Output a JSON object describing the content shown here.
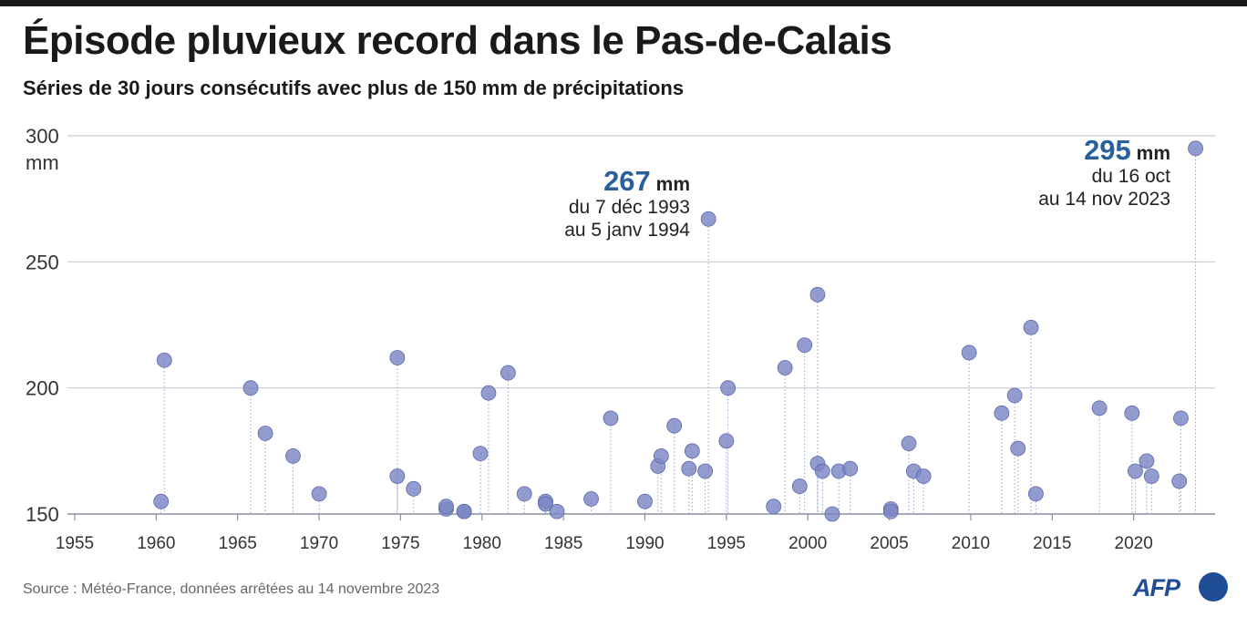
{
  "title": "Épisode pluvieux record dans le Pas-de-Calais",
  "subtitle": "Séries de 30 jours consécutifs avec plus de 150 mm de précipitations",
  "source": "Source : Météo-France, données arrêtées au 14 novembre 2023",
  "logo": "AFP",
  "colors": {
    "point": "#7b86c4",
    "point_dark": "#3f4f9e",
    "accent": "#2a5f9e",
    "logo": "#1f4e96",
    "grid": "#c9ccd6"
  },
  "annotations": [
    {
      "value": "267",
      "unit": "mm",
      "line1": "du 7 déc 1993",
      "line2": "au 5 janv 1994"
    },
    {
      "value": "295",
      "unit": "mm",
      "line1": "du 16 oct",
      "line2": "au 14 nov 2023"
    }
  ],
  "chart_data": {
    "type": "scatter",
    "title": "Épisode pluvieux record dans le Pas-de-Calais",
    "subtitle": "Séries de 30 jours consécutifs avec plus de 150 mm de précipitations",
    "ylabel": "",
    "y_unit": "mm",
    "xlim": [
      1955,
      2025
    ],
    "ylim": [
      150,
      300
    ],
    "x_ticks": [
      "1955",
      "1960",
      "1965",
      "1970",
      "1975",
      "1980",
      "1985",
      "1990",
      "1995",
      "2000",
      "2005",
      "2010",
      "2015",
      "2020"
    ],
    "y_ticks": [
      "150",
      "200",
      "250",
      "300"
    ],
    "grid": true,
    "points": [
      {
        "x": 1960.3,
        "y": 155
      },
      {
        "x": 1960.5,
        "y": 211
      },
      {
        "x": 1965.8,
        "y": 200
      },
      {
        "x": 1966.7,
        "y": 182
      },
      {
        "x": 1968.4,
        "y": 173
      },
      {
        "x": 1970.0,
        "y": 158
      },
      {
        "x": 1974.8,
        "y": 212
      },
      {
        "x": 1974.8,
        "y": 165
      },
      {
        "x": 1975.8,
        "y": 160
      },
      {
        "x": 1977.8,
        "y": 152
      },
      {
        "x": 1977.8,
        "y": 153
      },
      {
        "x": 1978.9,
        "y": 151
      },
      {
        "x": 1978.9,
        "y": 151
      },
      {
        "x": 1979.9,
        "y": 174
      },
      {
        "x": 1980.4,
        "y": 198
      },
      {
        "x": 1981.6,
        "y": 206
      },
      {
        "x": 1982.6,
        "y": 158
      },
      {
        "x": 1983.9,
        "y": 155
      },
      {
        "x": 1983.9,
        "y": 154
      },
      {
        "x": 1984.6,
        "y": 151
      },
      {
        "x": 1986.7,
        "y": 156
      },
      {
        "x": 1987.9,
        "y": 188
      },
      {
        "x": 1990.0,
        "y": 155
      },
      {
        "x": 1990.8,
        "y": 169
      },
      {
        "x": 1991.0,
        "y": 173
      },
      {
        "x": 1991.8,
        "y": 185
      },
      {
        "x": 1992.7,
        "y": 168
      },
      {
        "x": 1992.9,
        "y": 175
      },
      {
        "x": 1993.7,
        "y": 167
      },
      {
        "x": 1993.9,
        "y": 267
      },
      {
        "x": 1995.0,
        "y": 179
      },
      {
        "x": 1995.1,
        "y": 200
      },
      {
        "x": 1997.9,
        "y": 153
      },
      {
        "x": 1998.6,
        "y": 208
      },
      {
        "x": 1999.5,
        "y": 161
      },
      {
        "x": 1999.8,
        "y": 217
      },
      {
        "x": 2000.6,
        "y": 237
      },
      {
        "x": 2000.6,
        "y": 170
      },
      {
        "x": 2000.9,
        "y": 167
      },
      {
        "x": 2001.5,
        "y": 150
      },
      {
        "x": 2001.9,
        "y": 167
      },
      {
        "x": 2002.6,
        "y": 168
      },
      {
        "x": 2005.1,
        "y": 152
      },
      {
        "x": 2005.1,
        "y": 151
      },
      {
        "x": 2006.2,
        "y": 178
      },
      {
        "x": 2006.5,
        "y": 167
      },
      {
        "x": 2007.1,
        "y": 165
      },
      {
        "x": 2009.9,
        "y": 214
      },
      {
        "x": 2011.9,
        "y": 190
      },
      {
        "x": 2012.7,
        "y": 197
      },
      {
        "x": 2012.9,
        "y": 176
      },
      {
        "x": 2013.7,
        "y": 224
      },
      {
        "x": 2014.0,
        "y": 158
      },
      {
        "x": 2017.9,
        "y": 192
      },
      {
        "x": 2019.9,
        "y": 190
      },
      {
        "x": 2020.1,
        "y": 167
      },
      {
        "x": 2020.8,
        "y": 171
      },
      {
        "x": 2021.1,
        "y": 165
      },
      {
        "x": 2022.8,
        "y": 163
      },
      {
        "x": 2022.9,
        "y": 188
      },
      {
        "x": 2023.8,
        "y": 295
      }
    ]
  }
}
